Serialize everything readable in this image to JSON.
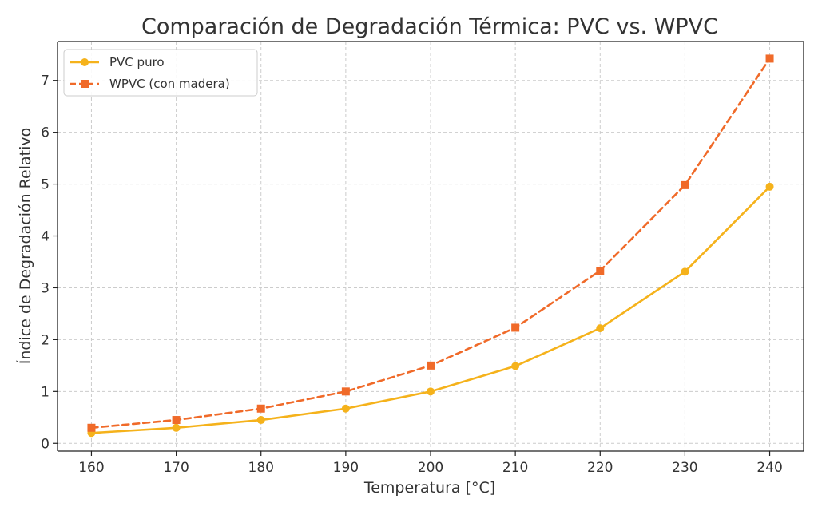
{
  "chart_data": {
    "type": "line",
    "title": "Comparación de Degradación Térmica: PVC vs. WPVC",
    "xlabel": "Temperatura [°C]",
    "ylabel": "Índice de Degradación Relativo",
    "x": [
      160,
      170,
      180,
      190,
      200,
      210,
      220,
      230,
      240
    ],
    "xlim": [
      156,
      244
    ],
    "ylim": [
      -0.15,
      7.75
    ],
    "xticks": [
      160,
      170,
      180,
      190,
      200,
      210,
      220,
      230,
      240
    ],
    "yticks": [
      0,
      1,
      2,
      3,
      4,
      5,
      6,
      7
    ],
    "grid": true,
    "legend_position": "top-left",
    "series": [
      {
        "name": "PVC puro",
        "values": [
          0.2,
          0.3,
          0.45,
          0.67,
          1.0,
          1.49,
          2.22,
          3.31,
          4.95
        ],
        "color": "#F5B21B",
        "line_style": "solid",
        "marker": "circle"
      },
      {
        "name": "WPVC (con madera)",
        "values": [
          0.3,
          0.45,
          0.67,
          1.0,
          1.5,
          2.23,
          3.33,
          4.98,
          7.42
        ],
        "color": "#F06A29",
        "line_style": "dashed",
        "marker": "square"
      }
    ]
  }
}
